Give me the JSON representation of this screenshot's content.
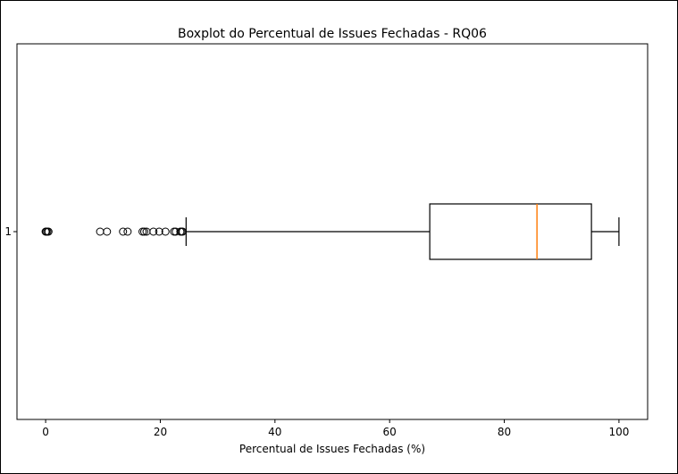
{
  "chart_data": {
    "type": "boxplot",
    "orientation": "horizontal",
    "title": "Boxplot do Percentual de Issues Fechadas - RQ06",
    "xlabel": "Percentual de Issues Fechadas (%)",
    "ylabel": "",
    "xlim": [
      -5,
      105
    ],
    "xticks": [
      0,
      20,
      40,
      60,
      80,
      100
    ],
    "y_tick_labels": [
      "1"
    ],
    "grid": false,
    "series": [
      {
        "whisker_low": 24.5,
        "q1": 67.0,
        "median": 85.7,
        "q3": 95.2,
        "whisker_high": 100.0,
        "outliers": [
          0.0,
          0.1,
          0.3,
          0.5,
          9.5,
          10.7,
          13.5,
          14.3,
          16.9,
          17.2,
          17.6,
          18.8,
          19.8,
          20.9,
          22.4,
          22.7,
          23.5,
          23.7,
          23.9
        ]
      }
    ],
    "colors": {
      "median": "#ff7f0e",
      "box": "#000000",
      "frame": "#000000"
    }
  }
}
